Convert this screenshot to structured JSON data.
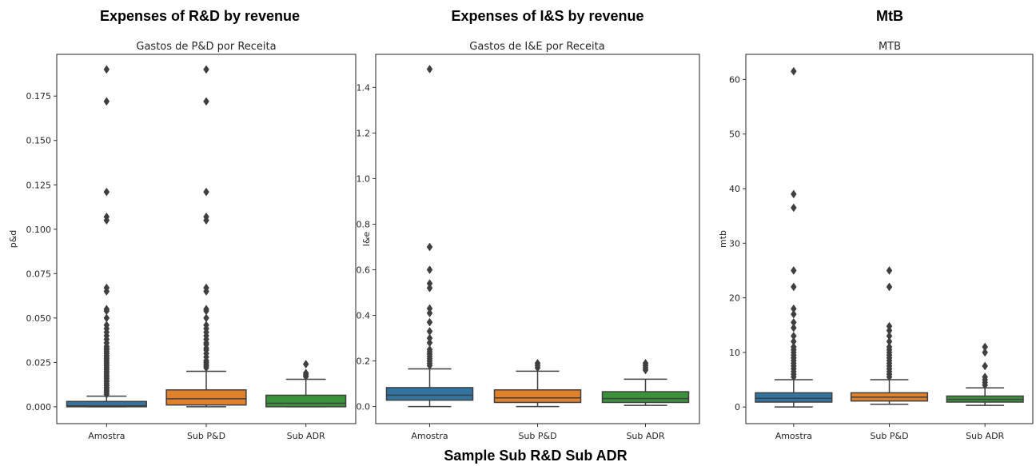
{
  "figure": {
    "titles": [
      "Expenses of R&D by revenue",
      "Expenses of I&S by revenue",
      "MtB"
    ],
    "bottom_title": "Sample Sub R&D Sub ADR"
  },
  "chart_data": [
    {
      "type": "box",
      "title": "Gastos de P&D por Receita",
      "xlabel": "",
      "ylabel": "p&d",
      "categories": [
        "Amostra",
        "Sub P&D",
        "Sub ADR"
      ],
      "colors": [
        "#3274a1",
        "#e1812c",
        "#3a923a"
      ],
      "ylim": [
        -0.0095,
        0.1985
      ],
      "yticks": [
        0.0,
        0.025,
        0.05,
        0.075,
        0.1,
        0.125,
        0.15,
        0.175
      ],
      "ytick_labels": [
        "0.000",
        "0.025",
        "0.050",
        "0.075",
        "0.100",
        "0.125",
        "0.150",
        "0.175"
      ],
      "boxes": [
        {
          "whislo": 0.0,
          "q1": 0.0,
          "med": 0.0005,
          "q3": 0.003,
          "whishi": 0.006,
          "fliers": [
            0.007,
            0.008,
            0.009,
            0.01,
            0.011,
            0.012,
            0.013,
            0.014,
            0.015,
            0.016,
            0.017,
            0.018,
            0.019,
            0.02,
            0.021,
            0.022,
            0.023,
            0.024,
            0.025,
            0.026,
            0.027,
            0.028,
            0.029,
            0.03,
            0.031,
            0.032,
            0.033,
            0.034,
            0.036,
            0.038,
            0.04,
            0.042,
            0.044,
            0.046,
            0.05,
            0.054,
            0.055,
            0.065,
            0.067,
            0.105,
            0.107,
            0.121,
            0.172,
            0.19
          ]
        },
        {
          "whislo": 0.0,
          "q1": 0.001,
          "med": 0.0045,
          "q3": 0.0095,
          "whishi": 0.02,
          "fliers": [
            0.022,
            0.023,
            0.024,
            0.025,
            0.026,
            0.028,
            0.03,
            0.032,
            0.033,
            0.035,
            0.036,
            0.038,
            0.04,
            0.042,
            0.044,
            0.046,
            0.05,
            0.054,
            0.055,
            0.065,
            0.067,
            0.105,
            0.107,
            0.121,
            0.172,
            0.19
          ]
        },
        {
          "whislo": 0.0,
          "q1": 0.0,
          "med": 0.002,
          "q3": 0.0065,
          "whishi": 0.0155,
          "fliers": [
            0.017,
            0.018,
            0.019,
            0.024
          ]
        }
      ]
    },
    {
      "type": "box",
      "title": "Gastos de I&E por Receita",
      "xlabel": "",
      "ylabel": "I&e",
      "categories": [
        "Amostra",
        "Sub P&D",
        "Sub ADR"
      ],
      "colors": [
        "#3274a1",
        "#e1812c",
        "#3a923a"
      ],
      "ylim": [
        -0.075,
        1.545
      ],
      "yticks": [
        0.0,
        0.2,
        0.4,
        0.6,
        0.8,
        1.0,
        1.2,
        1.4
      ],
      "ytick_labels": [
        "0.0",
        "0.2",
        "0.4",
        "0.6",
        "0.8",
        "1.0",
        "1.2",
        "1.4"
      ],
      "boxes": [
        {
          "whislo": 0.0,
          "q1": 0.028,
          "med": 0.05,
          "q3": 0.083,
          "whishi": 0.165,
          "fliers": [
            0.18,
            0.19,
            0.2,
            0.21,
            0.22,
            0.23,
            0.24,
            0.25,
            0.28,
            0.3,
            0.33,
            0.37,
            0.41,
            0.43,
            0.52,
            0.54,
            0.6,
            0.7,
            1.48
          ]
        },
        {
          "whislo": 0.0,
          "q1": 0.018,
          "med": 0.038,
          "q3": 0.073,
          "whishi": 0.155,
          "fliers": [
            0.17,
            0.18,
            0.19
          ]
        },
        {
          "whislo": 0.005,
          "q1": 0.018,
          "med": 0.035,
          "q3": 0.065,
          "whishi": 0.12,
          "fliers": [
            0.16,
            0.17,
            0.18,
            0.19
          ]
        }
      ]
    },
    {
      "type": "box",
      "title": "MTB",
      "xlabel": "",
      "ylabel": "mtb",
      "categories": [
        "Amostra",
        "Sub P&D",
        "Sub ADR"
      ],
      "colors": [
        "#3274a1",
        "#e1812c",
        "#3a923a"
      ],
      "ylim": [
        -3.05,
        64.6
      ],
      "yticks": [
        0,
        10,
        20,
        30,
        40,
        50,
        60
      ],
      "ytick_labels": [
        "0",
        "10",
        "20",
        "30",
        "40",
        "50",
        "60"
      ],
      "boxes": [
        {
          "whislo": 0.0,
          "q1": 0.9,
          "med": 1.6,
          "q3": 2.6,
          "whishi": 5.0,
          "fliers": [
            5.5,
            6.0,
            6.5,
            7.0,
            7.5,
            8.0,
            8.5,
            9.0,
            9.5,
            10.0,
            10.5,
            11.0,
            12.0,
            13.0,
            14.5,
            15.5,
            17.0,
            18.0,
            22.0,
            25.0,
            36.5,
            39.0,
            61.5
          ]
        },
        {
          "whislo": 0.5,
          "q1": 1.1,
          "med": 1.8,
          "q3": 2.6,
          "whishi": 5.0,
          "fliers": [
            5.5,
            6.0,
            6.5,
            7.0,
            7.5,
            8.0,
            8.5,
            9.0,
            9.5,
            10.0,
            10.5,
            11.0,
            12.0,
            13.0,
            14.0,
            14.8,
            22.0,
            25.0
          ]
        },
        {
          "whislo": 0.3,
          "q1": 0.9,
          "med": 1.4,
          "q3": 2.0,
          "whishi": 3.5,
          "fliers": [
            4.0,
            4.5,
            5.0,
            5.5,
            7.5,
            10.0,
            11.0
          ]
        }
      ]
    }
  ]
}
